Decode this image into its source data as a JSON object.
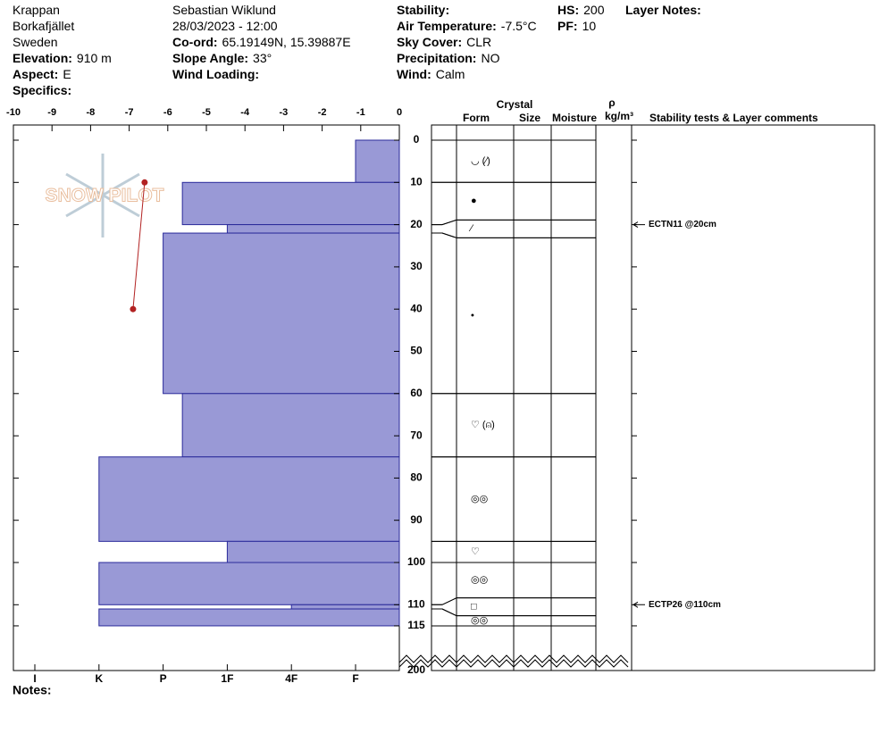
{
  "header": {
    "columns": [
      [
        {
          "value": "Krappan"
        },
        {
          "value": "Borkafjället"
        },
        {
          "value": "Sweden"
        },
        {
          "label": "Elevation:",
          "value": "910 m"
        },
        {
          "label": "Aspect:",
          "value": "E"
        },
        {
          "label": "Specifics:"
        }
      ],
      [
        {
          "value": "Sebastian Wiklund"
        },
        {
          "value": "28/03/2023 - 12:00"
        },
        {
          "label": "Co-ord:",
          "value": "65.19149N, 15.39887E"
        },
        {
          "label": "Slope Angle:",
          "value": "33°"
        },
        {
          "label": "Wind Loading:"
        }
      ],
      [
        {
          "label": "Stability:"
        },
        {
          "label": "Air Temperature:",
          "value": "-7.5°C"
        },
        {
          "label": "Sky Cover:",
          "value": "CLR"
        },
        {
          "label": "Precipitation:",
          "value": "NO"
        },
        {
          "label": "Wind:",
          "value": "Calm"
        }
      ],
      [
        {
          "label": "HS:",
          "value": "200"
        },
        {
          "label": "PF:",
          "value": "10"
        }
      ],
      [
        {
          "label": "Layer Notes:"
        }
      ]
    ]
  },
  "chart_data": {
    "type": "snow-profile",
    "logo": "SNOW PILOT",
    "temperature": {
      "xlim": [
        -10,
        0
      ],
      "xticks": [
        -10,
        -9,
        -8,
        -7,
        -6,
        -5,
        -4,
        -3,
        -2,
        -1,
        0
      ],
      "depth": [
        10,
        40
      ],
      "values": [
        -6.6,
        -6.9
      ],
      "color": "#b22222"
    },
    "depth": {
      "ylim": [
        0,
        200
      ],
      "yticks": [
        0,
        10,
        20,
        30,
        40,
        50,
        60,
        70,
        80,
        90,
        100,
        110,
        115,
        200
      ]
    },
    "hardness": {
      "ticks": [
        {
          "value": 6,
          "label": "I"
        },
        {
          "value": 5,
          "label": "K"
        },
        {
          "value": 4,
          "label": "P"
        },
        {
          "value": 3,
          "label": "1F"
        },
        {
          "value": 2,
          "label": "4F"
        },
        {
          "value": 1,
          "label": "F"
        }
      ],
      "color": "#9999d6"
    },
    "layers": [
      {
        "top": 0,
        "bottom": 10,
        "hardness": 1,
        "form": "◡ (⁄)"
      },
      {
        "top": 10,
        "bottom": 20,
        "hardness": 3.7,
        "form": "●"
      },
      {
        "top": 20,
        "bottom": 22,
        "hardness": 3,
        "form": "⁄"
      },
      {
        "top": 22,
        "bottom": 60,
        "hardness": 4,
        "form": "•"
      },
      {
        "top": 60,
        "bottom": 75,
        "hardness": 3.7,
        "form": "♡ (⍝)"
      },
      {
        "top": 75,
        "bottom": 95,
        "hardness": 5,
        "form": "◎◎"
      },
      {
        "top": 95,
        "bottom": 100,
        "hardness": 3,
        "form": "♡"
      },
      {
        "top": 100,
        "bottom": 110,
        "hardness": 5,
        "form": "◎◎"
      },
      {
        "top": 110,
        "bottom": 111,
        "hardness": 2,
        "form": "□"
      },
      {
        "top": 111,
        "bottom": 115,
        "hardness": 5,
        "form": "◎◎"
      }
    ],
    "columns": {
      "crystal": "Crystal",
      "form": "Form",
      "size": "Size",
      "moisture": "Moisture",
      "density_symbol": "ρ",
      "density_unit": "kg/m³",
      "comments": "Stability tests & Layer comments"
    },
    "tests": [
      {
        "depth": 20,
        "label": "ECTN11 @20cm"
      },
      {
        "depth": 110,
        "label": "ECTP26 @110cm"
      }
    ],
    "notes_label": "Notes:"
  }
}
